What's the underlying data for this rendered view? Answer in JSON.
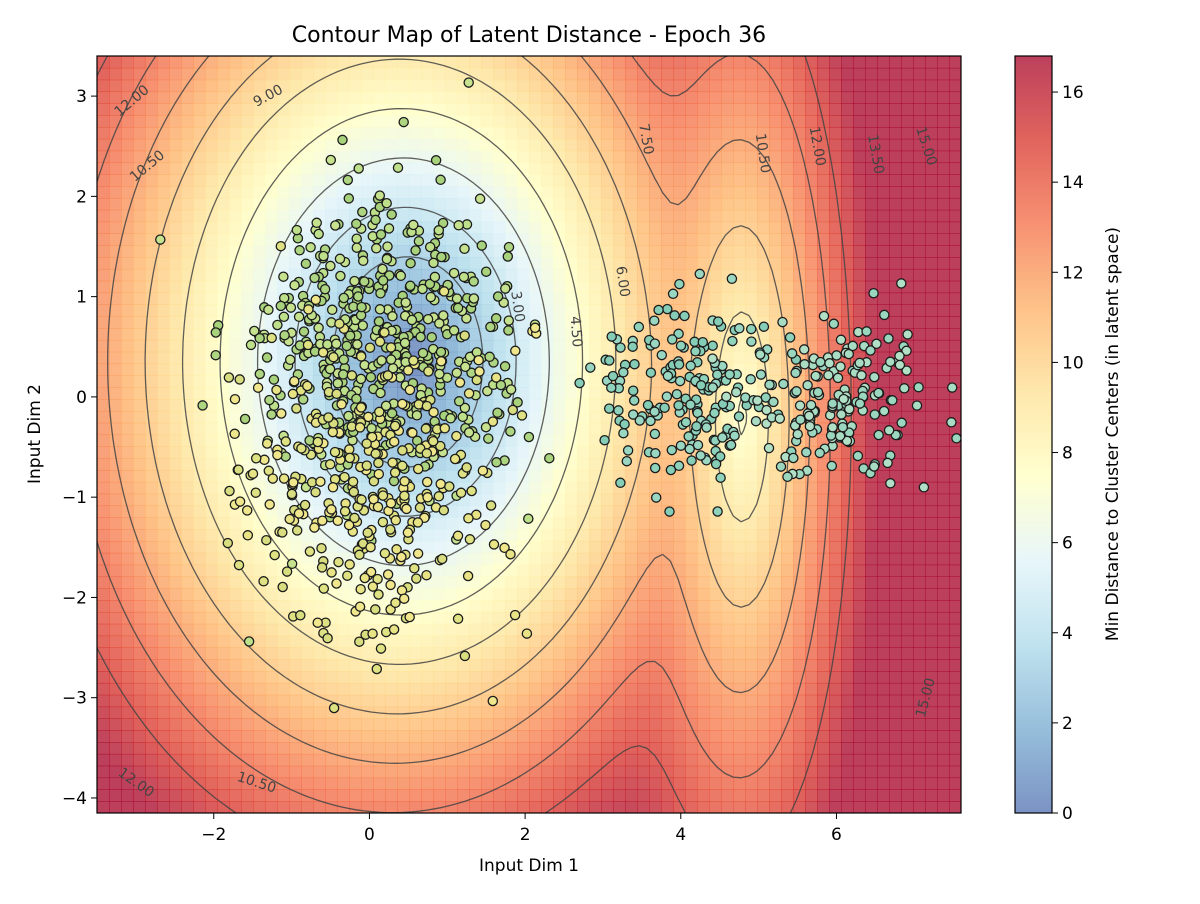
{
  "chart_data": {
    "type": "scatter",
    "title": "Contour Map of Latent Distance - Epoch 36",
    "xlabel": "Input Dim 1",
    "ylabel": "Input Dim 2",
    "xlim": [
      -3.5,
      7.6
    ],
    "ylim": [
      -4.15,
      3.4
    ],
    "x_ticks": [
      -2,
      0,
      2,
      4,
      6
    ],
    "y_ticks": [
      -4,
      -3,
      -2,
      -1,
      0,
      1,
      2,
      3
    ],
    "grid": false,
    "colorbar": {
      "label": "Min Distance to Cluster Centers (in latent space)",
      "range": [
        0,
        16.8
      ],
      "ticks": [
        0,
        2,
        4,
        6,
        8,
        10,
        12,
        14,
        16
      ],
      "colormap": "RdYlBu_r",
      "stops": [
        "#4f6fb0",
        "#74a9cf",
        "#abd9e9",
        "#e0f3f8",
        "#ffffbf",
        "#fee090",
        "#fdae61",
        "#f46d43",
        "#d73027",
        "#a50026"
      ]
    },
    "contour_levels": [
      3.0,
      4.5,
      6.0,
      7.5,
      9.0,
      10.5,
      12.0,
      13.5,
      15.0
    ],
    "contour_labels": [
      {
        "text": "12.00",
        "x": -3.05,
        "y": 2.95,
        "rotation": -40
      },
      {
        "text": "9.00",
        "x": -1.3,
        "y": 3.0,
        "rotation": -28
      },
      {
        "text": "10.50",
        "x": -2.85,
        "y": 2.3,
        "rotation": -40
      },
      {
        "text": "7.50",
        "x": 3.55,
        "y": 2.57,
        "rotation": 80
      },
      {
        "text": "10.50",
        "x": 5.05,
        "y": 2.43,
        "rotation": 82
      },
      {
        "text": "12.00",
        "x": 5.75,
        "y": 2.5,
        "rotation": 80
      },
      {
        "text": "13.50",
        "x": 6.5,
        "y": 2.42,
        "rotation": 80
      },
      {
        "text": "15.00",
        "x": 7.15,
        "y": 2.5,
        "rotation": 72
      },
      {
        "text": "6.00",
        "x": 3.25,
        "y": 1.15,
        "rotation": 82
      },
      {
        "text": "3.00",
        "x": 1.9,
        "y": 0.9,
        "rotation": 82
      },
      {
        "text": "4.50",
        "x": 2.65,
        "y": 0.65,
        "rotation": 86
      },
      {
        "text": "15.00",
        "x": 7.15,
        "y": -3.0,
        "rotation": -75
      },
      {
        "text": "12.00",
        "x": -3.0,
        "y": -3.85,
        "rotation": 35
      },
      {
        "text": "10.50",
        "x": -1.45,
        "y": -3.85,
        "rotation": 18
      }
    ],
    "clusters": [
      {
        "center": [
          0.2,
          0.55
        ],
        "spread": [
          0.85,
          0.75
        ],
        "n": 500,
        "color": "#b7d77a",
        "palette": [
          "#aed581",
          "#bfe08a",
          "#a9d27c",
          "#c6e28f"
        ]
      },
      {
        "center": [
          0.0,
          -0.85
        ],
        "spread": [
          0.85,
          0.75
        ],
        "n": 330,
        "color": "#e6e585",
        "palette": [
          "#e8e384",
          "#dfe282",
          "#f0e68c",
          "#d8dd80"
        ]
      },
      {
        "center": [
          4.1,
          0.05
        ],
        "spread": [
          0.55,
          0.45
        ],
        "n": 180,
        "color": "#8fd1bd",
        "palette": [
          "#8fd3bd",
          "#9ad7c2",
          "#85cdb6"
        ]
      },
      {
        "center": [
          6.0,
          0.0
        ],
        "spread": [
          0.6,
          0.45
        ],
        "n": 170,
        "color": "#a6dcc3",
        "palette": [
          "#a8ddc4",
          "#9bd6bf",
          "#b2e0c6"
        ]
      }
    ]
  }
}
